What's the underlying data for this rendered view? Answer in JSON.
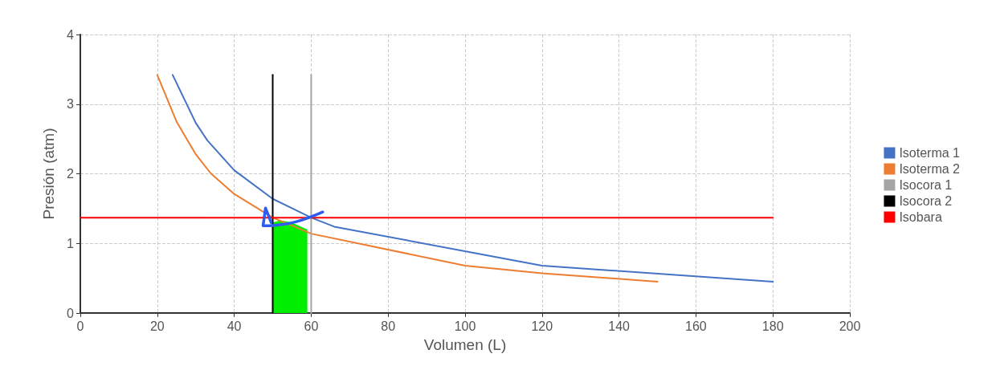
{
  "chart_data": {
    "type": "line",
    "xlabel": "Volumen (L)",
    "ylabel": "Presión (atm)",
    "xlim": [
      0,
      200
    ],
    "xticks": [
      0,
      20,
      40,
      60,
      80,
      100,
      120,
      140,
      160,
      180,
      200
    ],
    "ylim": [
      0,
      4
    ],
    "yticks": [
      0,
      1,
      2,
      3,
      4
    ],
    "grid": true,
    "legend": "right",
    "marker": "none",
    "line_style": "solid",
    "series": [
      {
        "name": "Isoterma 1",
        "color": "#4472c4",
        "x": [
          24,
          30,
          33,
          40,
          50,
          60,
          66,
          120,
          180
        ],
        "values": [
          3.42,
          2.73,
          2.48,
          2.05,
          1.64,
          1.37,
          1.24,
          0.68,
          0.45
        ]
      },
      {
        "name": "Isoterma 2",
        "color": "#ed7d31",
        "x": [
          20,
          25,
          30,
          34,
          40,
          50,
          60,
          100,
          120,
          150
        ],
        "values": [
          3.42,
          2.75,
          2.28,
          2.0,
          1.71,
          1.37,
          1.14,
          0.68,
          0.57,
          0.45
        ]
      },
      {
        "name": "Isocora 1",
        "color": "#a5a5a5",
        "x": [
          60,
          60
        ],
        "values": [
          0,
          3.42
        ]
      },
      {
        "name": "Isocora 2",
        "color": "#000000",
        "x": [
          50,
          50
        ],
        "values": [
          0,
          3.42
        ]
      },
      {
        "name": "Isobara",
        "color": "#ff0000",
        "x": [
          0,
          180
        ],
        "values": [
          1.37,
          1.37
        ]
      },
      {
        "type": "area",
        "color": "#00ee00",
        "x": [
          50,
          52,
          55,
          59
        ],
        "values": [
          1.3,
          1.33,
          1.3,
          1.2
        ]
      }
    ]
  }
}
